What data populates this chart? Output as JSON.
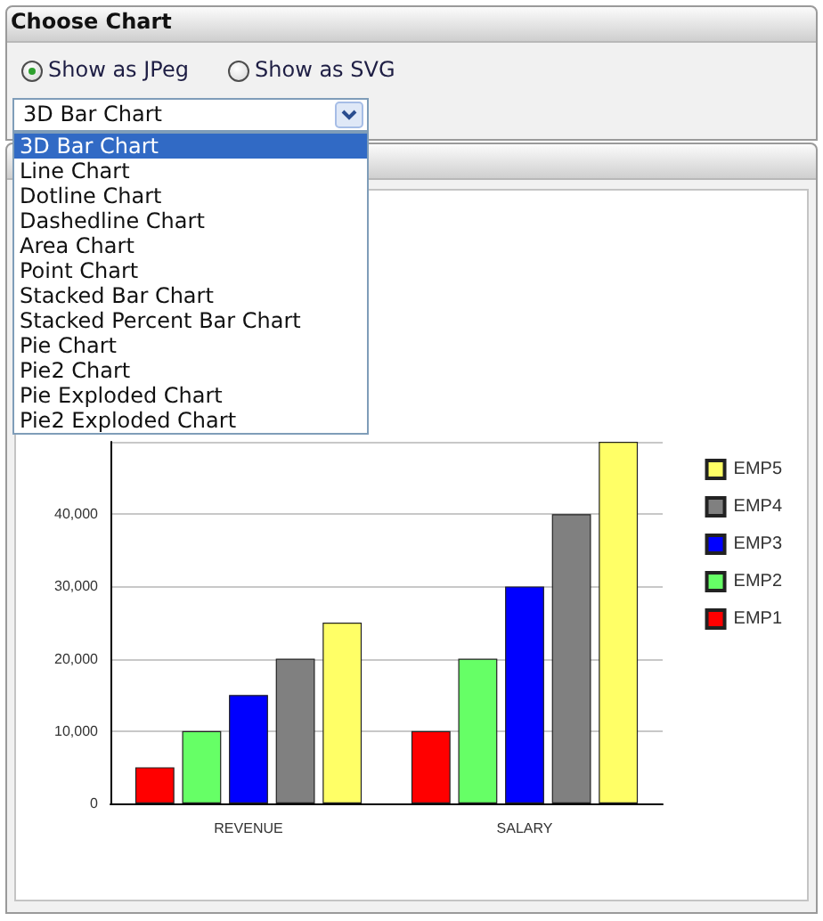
{
  "chart_data": {
    "type": "bar",
    "title": "Choose Chart",
    "annotations": [
      "Show as JPeg",
      "Show as SVG",
      "3D Bar Chart",
      "3D Bar Chart",
      "Line Chart",
      "Dotline Chart",
      "Dashedline Chart",
      "Area Chart",
      "Point Chart",
      "Stacked Bar Chart",
      "Stacked Percent Bar Chart",
      "Pie Chart",
      "Pie2 Chart",
      "Pie Exploded Chart",
      "Pie2 Exploded Chart"
    ],
    "categories": [
      "REVENUE",
      "SALARY"
    ],
    "series": [
      {
        "name": "EMP1",
        "color": "#ff0000",
        "values": [
          5000,
          10000
        ]
      },
      {
        "name": "EMP2",
        "color": "#66ff66",
        "values": [
          10000,
          20000
        ]
      },
      {
        "name": "EMP3",
        "color": "#0000ff",
        "values": [
          15000,
          30000
        ]
      },
      {
        "name": "EMP4",
        "color": "#808080",
        "values": [
          20000,
          40000
        ]
      },
      {
        "name": "EMP5",
        "color": "#ffff66",
        "values": [
          25000,
          50000
        ]
      }
    ],
    "ylim": [
      0,
      50000
    ],
    "yticks": [
      0,
      {
        "value": 10000,
        "label": "10,000"
      },
      {
        "value": 20000,
        "label": "20,000"
      },
      {
        "value": 30000,
        "label": "30,000"
      },
      {
        "value": 40000,
        "label": "40,000"
      },
      {
        "value": 50000,
        "label": null
      }
    ],
    "grid": "y",
    "legend": "right"
  }
}
